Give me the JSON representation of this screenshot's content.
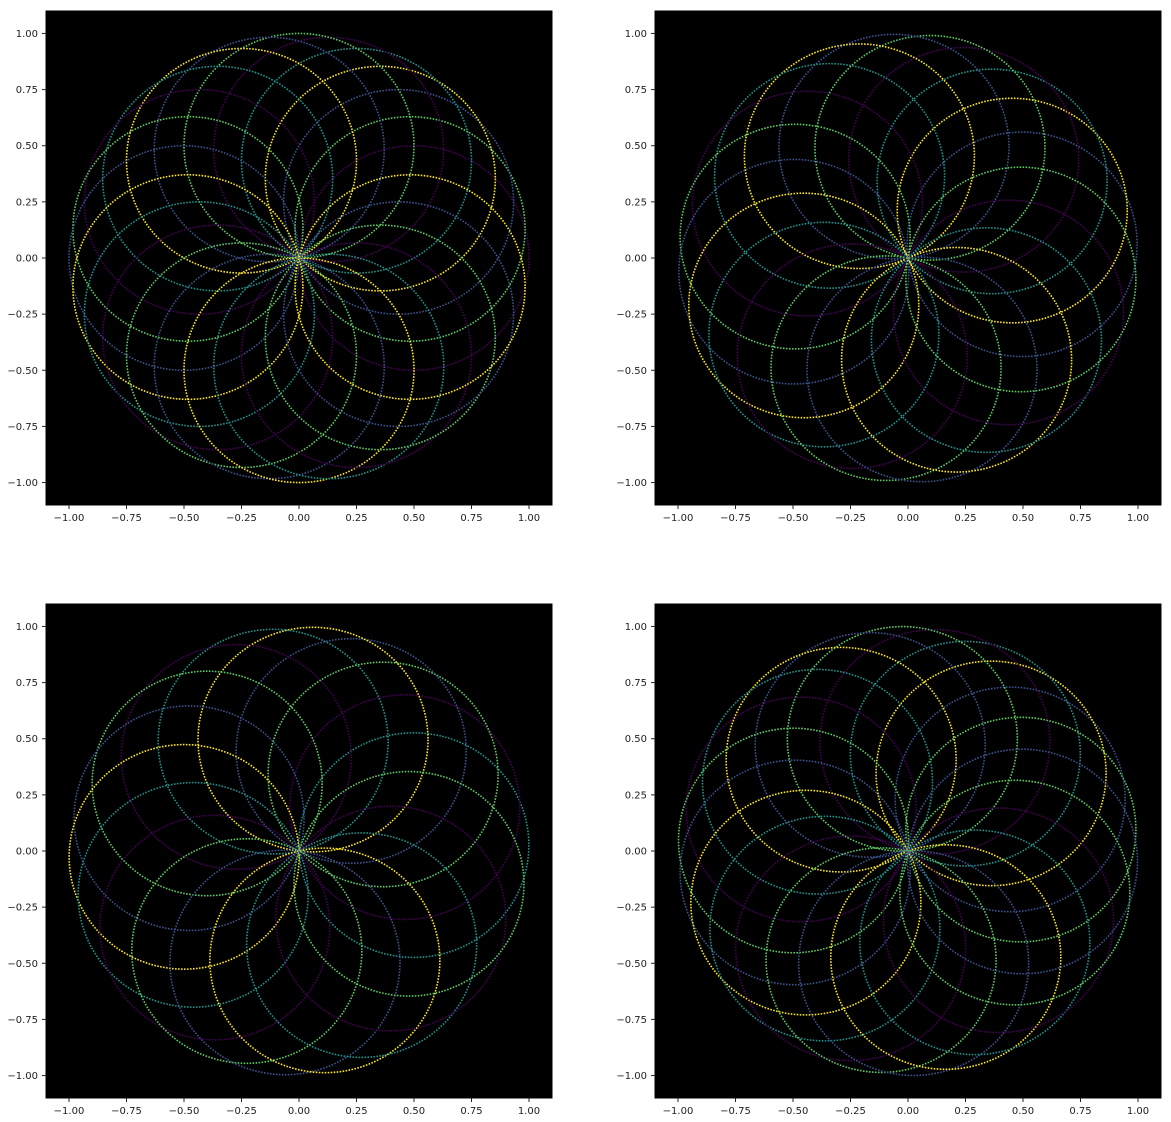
{
  "figure": {
    "background": "#ffffff",
    "panel_background": "#000000",
    "colormap": "viridis",
    "colormap_stops": [
      "#440154",
      "#3b528b",
      "#21918c",
      "#5ec962",
      "#fde725"
    ]
  },
  "chart_data": [
    {
      "type": "scatter",
      "title": "",
      "xlabel": "",
      "ylabel": "",
      "xlim": [
        -1.1,
        1.1
      ],
      "ylim": [
        -1.1,
        1.1
      ],
      "grid": false,
      "legend": null,
      "marker": "dotted circles (rose of circles through origin)",
      "series": [
        {
          "circles": 24,
          "center_radius": 0.5,
          "circle_radius": 0.5,
          "phase_deg": 0
        }
      ],
      "xticks": [
        "−1.00",
        "−0.75",
        "−0.50",
        "−0.25",
        "0.00",
        "0.25",
        "0.50",
        "0.75",
        "1.00"
      ],
      "yticks": [
        "−1.00",
        "−0.75",
        "−0.50",
        "−0.25",
        "0.00",
        "0.25",
        "0.50",
        "0.75",
        "1.00"
      ],
      "xtick_values": [
        -1.0,
        -0.75,
        -0.5,
        -0.25,
        0.0,
        0.25,
        0.5,
        0.75,
        1.0
      ],
      "ytick_values": [
        -1.0,
        -0.75,
        -0.5,
        -0.25,
        0.0,
        0.25,
        0.5,
        0.75,
        1.0
      ]
    },
    {
      "type": "scatter",
      "title": "",
      "xlabel": "",
      "ylabel": "",
      "xlim": [
        -1.1,
        1.1
      ],
      "ylim": [
        -1.1,
        1.1
      ],
      "grid": false,
      "legend": null,
      "marker": "dotted circles (rose of circles through origin)",
      "series": [
        {
          "circles": 20,
          "center_radius": 0.5,
          "circle_radius": 0.5,
          "phase_deg": 7
        }
      ],
      "xticks": [
        "−1.00",
        "−0.75",
        "−0.50",
        "−0.25",
        "0.00",
        "0.25",
        "0.50",
        "0.75",
        "1.00"
      ],
      "yticks": [
        "−1.00",
        "−0.75",
        "−0.50",
        "−0.25",
        "0.00",
        "0.25",
        "0.50",
        "0.75",
        "1.00"
      ],
      "xtick_values": [
        -1.0,
        -0.75,
        -0.5,
        -0.25,
        0.0,
        0.25,
        0.5,
        0.75,
        1.0
      ],
      "ytick_values": [
        -1.0,
        -0.75,
        -0.5,
        -0.25,
        0.0,
        0.25,
        0.5,
        0.75,
        1.0
      ]
    },
    {
      "type": "scatter",
      "title": "",
      "xlabel": "",
      "ylabel": "",
      "xlim": [
        -1.1,
        1.1
      ],
      "ylim": [
        -1.1,
        1.1
      ],
      "grid": false,
      "legend": null,
      "marker": "dotted circles (rose of circles through origin)",
      "series": [
        {
          "circles": 18,
          "center_radius": 0.5,
          "circle_radius": 0.5,
          "phase_deg": 3
        }
      ],
      "xticks": [
        "−1.00",
        "−0.75",
        "−0.50",
        "−0.25",
        "0.00",
        "0.25",
        "0.50",
        "0.75",
        "1.00"
      ],
      "yticks": [
        "−1.00",
        "−0.75",
        "−0.50",
        "−0.25",
        "0.00",
        "0.25",
        "0.50",
        "0.75",
        "1.00"
      ],
      "xtick_values": [
        -1.0,
        -0.75,
        -0.5,
        -0.25,
        0.0,
        0.25,
        0.5,
        0.75,
        1.0
      ],
      "ytick_values": [
        -1.0,
        -0.75,
        -0.5,
        -0.25,
        0.0,
        0.25,
        0.5,
        0.75,
        1.0
      ]
    },
    {
      "type": "scatter",
      "title": "",
      "xlabel": "",
      "ylabel": "",
      "xlim": [
        -1.1,
        1.1
      ],
      "ylim": [
        -1.1,
        1.1
      ],
      "grid": false,
      "legend": null,
      "marker": "dotted circles (rose of circles through origin)",
      "series": [
        {
          "circles": 22,
          "center_radius": 0.5,
          "circle_radius": 0.5,
          "phase_deg": 11
        }
      ],
      "xticks": [
        "−1.00",
        "−0.75",
        "−0.50",
        "−0.25",
        "0.00",
        "0.25",
        "0.50",
        "0.75",
        "1.00"
      ],
      "yticks": [
        "−1.00",
        "−0.75",
        "−0.50",
        "−0.25",
        "0.00",
        "0.25",
        "0.50",
        "0.75",
        "1.00"
      ],
      "xtick_values": [
        -1.0,
        -0.75,
        -0.5,
        -0.25,
        0.0,
        0.25,
        0.5,
        0.75,
        1.0
      ],
      "ytick_values": [
        -1.0,
        -0.75,
        -0.5,
        -0.25,
        0.0,
        0.25,
        0.5,
        0.75,
        1.0
      ]
    }
  ]
}
